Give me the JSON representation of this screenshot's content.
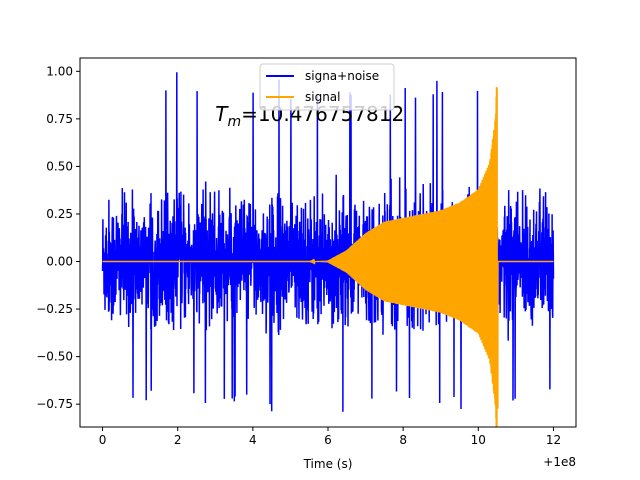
{
  "chart_data": {
    "type": "line",
    "title": "",
    "xlabel": "Time (s)",
    "ylabel": "",
    "xlim": [
      -0.6,
      12.6
    ],
    "ylim": [
      -0.87,
      1.07
    ],
    "x_offset_label": "+1e8",
    "xticks": [
      0,
      2,
      4,
      6,
      8,
      10,
      12
    ],
    "xtick_labels": [
      "0",
      "2",
      "4",
      "6",
      "8",
      "10",
      "12"
    ],
    "yticks": [
      -0.75,
      -0.5,
      -0.25,
      0.0,
      0.25,
      0.5,
      0.75,
      1.0
    ],
    "ytick_labels": [
      "−0.75",
      "−0.50",
      "−0.25",
      "0.00",
      "0.25",
      "0.50",
      "0.75",
      "1.00"
    ],
    "grid": false,
    "legend_position": "top-center",
    "series": [
      {
        "name": "signa+noise",
        "color": "#0000ff",
        "x_range": [
          0,
          12
        ],
        "typical_amplitude": [
          -0.3,
          0.35
        ],
        "envelope_peak": [
          -0.79,
          1.0
        ]
      },
      {
        "name": "signal",
        "color": "#ffa500",
        "x_range": [
          0,
          12
        ],
        "points": [
          {
            "x": 0,
            "amplitude": 0.0
          },
          {
            "x": 5.5,
            "amplitude": 0.0
          },
          {
            "x": 6.0,
            "amplitude": 0.005
          },
          {
            "x": 6.5,
            "amplitude": 0.06
          },
          {
            "x": 7.0,
            "amplitude": 0.15
          },
          {
            "x": 7.5,
            "amplitude": 0.21
          },
          {
            "x": 8.0,
            "amplitude": 0.23
          },
          {
            "x": 9.0,
            "amplitude": 0.27
          },
          {
            "x": 9.5,
            "amplitude": 0.31
          },
          {
            "x": 10.0,
            "amplitude": 0.38
          },
          {
            "x": 10.3,
            "amplitude": 0.52
          },
          {
            "x": 10.45,
            "amplitude": 0.75
          },
          {
            "x": 10.5,
            "amplitude": 1.0
          },
          {
            "x": 10.52,
            "amplitude": 0.0
          },
          {
            "x": 12,
            "amplitude": 0.0
          }
        ]
      }
    ],
    "annotations": [
      {
        "label_math": "T",
        "label_sub": "m",
        "label_eq": "=",
        "value": "10.476757812",
        "x": 3.0,
        "y": 0.78
      }
    ]
  }
}
